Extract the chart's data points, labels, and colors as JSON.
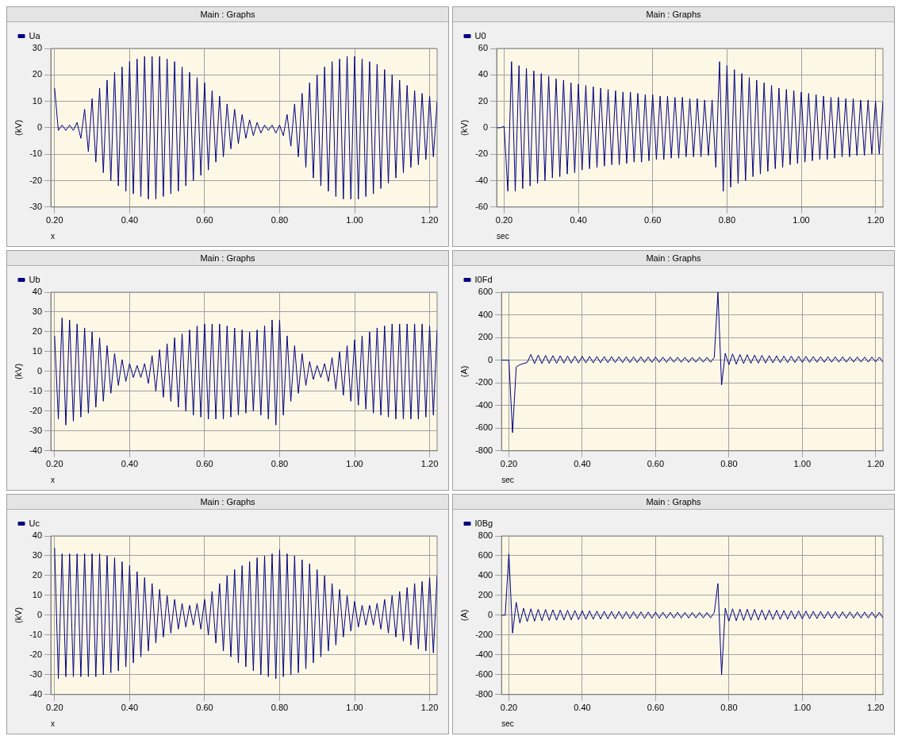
{
  "chart_data": [
    {
      "type": "line",
      "title": "Main : Graphs",
      "xlabel": "x",
      "ylabel": "(kV)",
      "legend": "top left",
      "grid": true,
      "xlim": [
        0.19,
        1.22
      ],
      "xticks": [
        {
          "value": 0.2,
          "label": "0.20"
        },
        {
          "value": 0.4,
          "label": "0.40"
        },
        {
          "value": 0.6,
          "label": "0.60"
        },
        {
          "value": 0.8,
          "label": "0.80"
        },
        {
          "value": 1.0,
          "label": "1.00"
        },
        {
          "value": 1.2,
          "label": "1.20"
        }
      ],
      "ylim": [
        -30,
        30
      ],
      "yticks": [
        -30,
        -20,
        -10,
        0,
        10,
        20,
        30
      ],
      "x": [
        0.2,
        0.21,
        0.22,
        0.23,
        0.24,
        0.25,
        0.26,
        0.27,
        0.28,
        0.29,
        0.3,
        0.31,
        0.32,
        0.33,
        0.34,
        0.35,
        0.36,
        0.37,
        0.38,
        0.39,
        0.4,
        0.41,
        0.42,
        0.43,
        0.44,
        0.45,
        0.46,
        0.47,
        0.48,
        0.49,
        0.5,
        0.51,
        0.52,
        0.53,
        0.54,
        0.55,
        0.56,
        0.57,
        0.58,
        0.59,
        0.6,
        0.61,
        0.62,
        0.63,
        0.64,
        0.65,
        0.66,
        0.67,
        0.68,
        0.69,
        0.7,
        0.71,
        0.72,
        0.73,
        0.74,
        0.75,
        0.76,
        0.77,
        0.78,
        0.79,
        0.8,
        0.81,
        0.82,
        0.83,
        0.84,
        0.85,
        0.86,
        0.87,
        0.88,
        0.89,
        0.9,
        0.91,
        0.92,
        0.93,
        0.94,
        0.95,
        0.96,
        0.97,
        0.98,
        0.99,
        1.0,
        1.01,
        1.02,
        1.03,
        1.04,
        1.05,
        1.06,
        1.07,
        1.08,
        1.09,
        1.1,
        1.11,
        1.12,
        1.13,
        1.14,
        1.15,
        1.16,
        1.17,
        1.18,
        1.19,
        1.2,
        1.21,
        1.22
      ],
      "series": [
        {
          "name": "Ua",
          "color": "#000080",
          "values": [
            15,
            -1,
            1,
            -1,
            1,
            -1,
            2,
            -4,
            7,
            -9,
            11,
            -13,
            15,
            -17,
            18,
            -20,
            21,
            -22,
            23,
            -24,
            25,
            -25,
            26,
            -26,
            27,
            -27,
            27,
            -27,
            27,
            -26,
            26,
            -25,
            25,
            -24,
            23,
            -22,
            21,
            -20,
            19,
            -18,
            17,
            -16,
            14,
            -13,
            12,
            -11,
            9,
            -8,
            7,
            -6,
            5,
            -4,
            3,
            -3,
            2,
            -2,
            1,
            -1,
            1,
            -2,
            1,
            -3,
            5,
            -7,
            9,
            -11,
            13,
            -15,
            17,
            -19,
            20,
            -22,
            23,
            -24,
            25,
            -26,
            26,
            -27,
            27,
            -27,
            27,
            -27,
            26,
            -26,
            25,
            -25,
            24,
            -23,
            22,
            -21,
            20,
            -19,
            18,
            -17,
            16,
            -15,
            14,
            -14,
            13,
            -12,
            12,
            -11,
            10
          ]
        }
      ]
    },
    {
      "type": "line",
      "title": "Main : Graphs",
      "xlabel": "sec",
      "ylabel": "(kV)",
      "legend": "top left",
      "grid": true,
      "xlim": [
        0.18,
        1.22
      ],
      "xticks": [
        {
          "value": 0.2,
          "label": "0.20"
        },
        {
          "value": 0.4,
          "label": "0.40"
        },
        {
          "value": 0.6,
          "label": "0.60"
        },
        {
          "value": 0.8,
          "label": "0.80"
        },
        {
          "value": 1.0,
          "label": "1.00"
        },
        {
          "value": 1.2,
          "label": "1.20"
        }
      ],
      "ylim": [
        -60,
        60
      ],
      "yticks": [
        -60,
        -40,
        -20,
        0,
        20,
        40,
        60
      ],
      "x": [
        0.18,
        0.19,
        0.2,
        0.21,
        0.22,
        0.23,
        0.24,
        0.25,
        0.26,
        0.27,
        0.28,
        0.29,
        0.3,
        0.31,
        0.32,
        0.33,
        0.34,
        0.35,
        0.36,
        0.37,
        0.38,
        0.39,
        0.4,
        0.41,
        0.42,
        0.43,
        0.44,
        0.45,
        0.46,
        0.47,
        0.48,
        0.49,
        0.5,
        0.51,
        0.52,
        0.53,
        0.54,
        0.55,
        0.56,
        0.57,
        0.58,
        0.59,
        0.6,
        0.61,
        0.62,
        0.63,
        0.64,
        0.65,
        0.66,
        0.67,
        0.68,
        0.69,
        0.7,
        0.71,
        0.72,
        0.73,
        0.74,
        0.75,
        0.76,
        0.77,
        0.78,
        0.79,
        0.8,
        0.81,
        0.82,
        0.83,
        0.84,
        0.85,
        0.86,
        0.87,
        0.88,
        0.89,
        0.9,
        0.91,
        0.92,
        0.93,
        0.94,
        0.95,
        0.96,
        0.97,
        0.98,
        0.99,
        1.0,
        1.01,
        1.02,
        1.03,
        1.04,
        1.05,
        1.06,
        1.07,
        1.08,
        1.09,
        1.1,
        1.11,
        1.12,
        1.13,
        1.14,
        1.15,
        1.16,
        1.17,
        1.18,
        1.19,
        1.2,
        1.21,
        1.22
      ],
      "series": [
        {
          "name": "U0",
          "color": "#000080",
          "values": [
            0,
            0,
            1,
            -48,
            50,
            -48,
            47,
            -46,
            45,
            -44,
            43,
            -42,
            41,
            -40,
            39,
            -38,
            37,
            -37,
            36,
            -35,
            34,
            -34,
            33,
            -32,
            32,
            -31,
            31,
            -30,
            30,
            -29,
            29,
            -28,
            28,
            -28,
            27,
            -27,
            27,
            -26,
            26,
            -26,
            25,
            -25,
            25,
            -24,
            24,
            -24,
            24,
            -23,
            23,
            -23,
            23,
            -22,
            22,
            -22,
            22,
            -22,
            21,
            -21,
            21,
            -30,
            50,
            -48,
            47,
            -45,
            44,
            -42,
            41,
            -40,
            38,
            -37,
            36,
            -35,
            34,
            -33,
            32,
            -31,
            30,
            -30,
            29,
            -28,
            28,
            -27,
            27,
            -26,
            26,
            -25,
            25,
            -24,
            24,
            -24,
            23,
            -23,
            23,
            -22,
            22,
            -22,
            22,
            -21,
            21,
            -21,
            21,
            -20,
            20,
            -20,
            20
          ]
        }
      ]
    },
    {
      "type": "line",
      "title": "Main : Graphs",
      "xlabel": "x",
      "ylabel": "(kV)",
      "legend": "top left",
      "grid": true,
      "xlim": [
        0.19,
        1.22
      ],
      "xticks": [
        {
          "value": 0.2,
          "label": "0.20"
        },
        {
          "value": 0.4,
          "label": "0.40"
        },
        {
          "value": 0.6,
          "label": "0.60"
        },
        {
          "value": 0.8,
          "label": "0.80"
        },
        {
          "value": 1.0,
          "label": "1.00"
        },
        {
          "value": 1.2,
          "label": "1.20"
        }
      ],
      "ylim": [
        -40,
        40
      ],
      "yticks": [
        -40,
        -30,
        -20,
        -10,
        0,
        10,
        20,
        30,
        40
      ],
      "x": [
        0.2,
        0.21,
        0.22,
        0.23,
        0.24,
        0.25,
        0.26,
        0.27,
        0.28,
        0.29,
        0.3,
        0.31,
        0.32,
        0.33,
        0.34,
        0.35,
        0.36,
        0.37,
        0.38,
        0.39,
        0.4,
        0.41,
        0.42,
        0.43,
        0.44,
        0.45,
        0.46,
        0.47,
        0.48,
        0.49,
        0.5,
        0.51,
        0.52,
        0.53,
        0.54,
        0.55,
        0.56,
        0.57,
        0.58,
        0.59,
        0.6,
        0.61,
        0.62,
        0.63,
        0.64,
        0.65,
        0.66,
        0.67,
        0.68,
        0.69,
        0.7,
        0.71,
        0.72,
        0.73,
        0.74,
        0.75,
        0.76,
        0.77,
        0.78,
        0.79,
        0.8,
        0.81,
        0.82,
        0.83,
        0.84,
        0.85,
        0.86,
        0.87,
        0.88,
        0.89,
        0.9,
        0.91,
        0.92,
        0.93,
        0.94,
        0.95,
        0.96,
        0.97,
        0.98,
        0.99,
        1.0,
        1.01,
        1.02,
        1.03,
        1.04,
        1.05,
        1.06,
        1.07,
        1.08,
        1.09,
        1.1,
        1.11,
        1.12,
        1.13,
        1.14,
        1.15,
        1.16,
        1.17,
        1.18,
        1.19,
        1.2,
        1.21,
        1.22
      ],
      "series": [
        {
          "name": "Ub",
          "color": "#000080",
          "values": [
            18,
            -24,
            27,
            -27,
            26,
            -25,
            24,
            -23,
            22,
            -21,
            20,
            -18,
            17,
            -15,
            13,
            -11,
            9,
            -7,
            6,
            -5,
            4,
            -3,
            3,
            -3,
            4,
            -6,
            8,
            -10,
            11,
            -13,
            14,
            -15,
            17,
            -18,
            19,
            -20,
            21,
            -22,
            23,
            -23,
            24,
            -24,
            24,
            -24,
            24,
            -24,
            23,
            -23,
            22,
            -22,
            21,
            -21,
            20,
            -20,
            21,
            -22,
            23,
            -24,
            26,
            -27,
            26,
            -22,
            18,
            -15,
            13,
            -11,
            9,
            -7,
            5,
            -4,
            3,
            -3,
            4,
            -5,
            7,
            -9,
            10,
            -12,
            13,
            -15,
            16,
            -17,
            18,
            -19,
            20,
            -21,
            22,
            -22,
            23,
            -23,
            24,
            -24,
            24,
            -24,
            24,
            -24,
            24,
            -24,
            24,
            -23,
            23,
            -22,
            21
          ]
        }
      ]
    },
    {
      "type": "line",
      "title": "Main : Graphs",
      "xlabel": "sec",
      "ylabel": "(A)",
      "legend": "top left",
      "grid": true,
      "xlim": [
        0.18,
        1.22
      ],
      "xticks": [
        {
          "value": 0.2,
          "label": "0.20"
        },
        {
          "value": 0.4,
          "label": "0.40"
        },
        {
          "value": 0.6,
          "label": "0.60"
        },
        {
          "value": 0.8,
          "label": "0.80"
        },
        {
          "value": 1.0,
          "label": "1.00"
        },
        {
          "value": 1.2,
          "label": "1.20"
        }
      ],
      "ylim": [
        -800,
        600
      ],
      "yticks": [
        -800,
        -600,
        -400,
        -200,
        0,
        200,
        400,
        600
      ],
      "x": [
        0.18,
        0.19,
        0.2,
        0.21,
        0.22,
        0.23,
        0.24,
        0.25,
        0.26,
        0.27,
        0.28,
        0.29,
        0.3,
        0.31,
        0.32,
        0.33,
        0.34,
        0.35,
        0.36,
        0.37,
        0.38,
        0.39,
        0.4,
        0.41,
        0.42,
        0.43,
        0.44,
        0.45,
        0.46,
        0.47,
        0.48,
        0.49,
        0.5,
        0.51,
        0.52,
        0.53,
        0.54,
        0.55,
        0.56,
        0.57,
        0.58,
        0.59,
        0.6,
        0.61,
        0.62,
        0.63,
        0.64,
        0.65,
        0.66,
        0.67,
        0.68,
        0.69,
        0.7,
        0.71,
        0.72,
        0.73,
        0.74,
        0.75,
        0.76,
        0.77,
        0.78,
        0.79,
        0.8,
        0.81,
        0.82,
        0.83,
        0.84,
        0.85,
        0.86,
        0.87,
        0.88,
        0.89,
        0.9,
        0.91,
        0.92,
        0.93,
        0.94,
        0.95,
        0.96,
        0.97,
        0.98,
        0.99,
        1.0,
        1.01,
        1.02,
        1.03,
        1.04,
        1.05,
        1.06,
        1.07,
        1.08,
        1.09,
        1.1,
        1.11,
        1.12,
        1.13,
        1.14,
        1.15,
        1.16,
        1.17,
        1.18,
        1.19,
        1.2,
        1.21,
        1.22
      ],
      "series": [
        {
          "name": "I0Fd",
          "color": "#000080",
          "values": [
            0,
            0,
            0,
            -640,
            -60,
            -40,
            -30,
            -20,
            50,
            -30,
            45,
            -30,
            42,
            -28,
            40,
            -28,
            38,
            -26,
            36,
            -26,
            35,
            -25,
            34,
            -24,
            33,
            -24,
            32,
            -23,
            32,
            -23,
            31,
            -22,
            30,
            -22,
            30,
            -22,
            29,
            -21,
            29,
            -21,
            28,
            -20,
            28,
            -20,
            27,
            -20,
            27,
            -19,
            26,
            -19,
            26,
            -19,
            25,
            -18,
            25,
            -18,
            25,
            -18,
            24,
            600,
            -220,
            60,
            -40,
            55,
            -35,
            50,
            -30,
            48,
            -28,
            45,
            -26,
            42,
            -25,
            40,
            -24,
            38,
            -23,
            36,
            -22,
            35,
            -21,
            34,
            -20,
            33,
            -20,
            32,
            -19,
            31,
            -19,
            30,
            -18,
            30,
            -18,
            29,
            -18,
            28,
            -17,
            28,
            -17,
            27,
            -17,
            27,
            -16,
            26,
            -16
          ]
        }
      ]
    },
    {
      "type": "line",
      "title": "Main : Graphs",
      "xlabel": "x",
      "ylabel": "(kV)",
      "legend": "top left",
      "grid": true,
      "xlim": [
        0.19,
        1.22
      ],
      "xticks": [
        {
          "value": 0.2,
          "label": "0.20"
        },
        {
          "value": 0.4,
          "label": "0.40"
        },
        {
          "value": 0.6,
          "label": "0.60"
        },
        {
          "value": 0.8,
          "label": "0.80"
        },
        {
          "value": 1.0,
          "label": "1.00"
        },
        {
          "value": 1.2,
          "label": "1.20"
        }
      ],
      "ylim": [
        -40,
        40
      ],
      "yticks": [
        -40,
        -30,
        -20,
        -10,
        0,
        10,
        20,
        30,
        40
      ],
      "x": [
        0.2,
        0.21,
        0.22,
        0.23,
        0.24,
        0.25,
        0.26,
        0.27,
        0.28,
        0.29,
        0.3,
        0.31,
        0.32,
        0.33,
        0.34,
        0.35,
        0.36,
        0.37,
        0.38,
        0.39,
        0.4,
        0.41,
        0.42,
        0.43,
        0.44,
        0.45,
        0.46,
        0.47,
        0.48,
        0.49,
        0.5,
        0.51,
        0.52,
        0.53,
        0.54,
        0.55,
        0.56,
        0.57,
        0.58,
        0.59,
        0.6,
        0.61,
        0.62,
        0.63,
        0.64,
        0.65,
        0.66,
        0.67,
        0.68,
        0.69,
        0.7,
        0.71,
        0.72,
        0.73,
        0.74,
        0.75,
        0.76,
        0.77,
        0.78,
        0.79,
        0.8,
        0.81,
        0.82,
        0.83,
        0.84,
        0.85,
        0.86,
        0.87,
        0.88,
        0.89,
        0.9,
        0.91,
        0.92,
        0.93,
        0.94,
        0.95,
        0.96,
        0.97,
        0.98,
        0.99,
        1.0,
        1.01,
        1.02,
        1.03,
        1.04,
        1.05,
        1.06,
        1.07,
        1.08,
        1.09,
        1.1,
        1.11,
        1.12,
        1.13,
        1.14,
        1.15,
        1.16,
        1.17,
        1.18,
        1.19,
        1.2,
        1.21,
        1.22
      ],
      "series": [
        {
          "name": "Uc",
          "color": "#000080",
          "values": [
            34,
            -32,
            31,
            -31,
            31,
            -31,
            31,
            -31,
            31,
            -31,
            31,
            -31,
            31,
            -30,
            30,
            -29,
            29,
            -28,
            27,
            -26,
            25,
            -24,
            22,
            -21,
            19,
            -18,
            16,
            -14,
            13,
            -11,
            10,
            -9,
            8,
            -7,
            6,
            -6,
            5,
            -5,
            6,
            -7,
            8,
            -10,
            12,
            -14,
            16,
            -18,
            20,
            -21,
            23,
            -24,
            25,
            -26,
            27,
            -28,
            29,
            -30,
            30,
            -31,
            31,
            -32,
            33,
            -31,
            31,
            -30,
            30,
            -29,
            28,
            -27,
            26,
            -24,
            23,
            -21,
            20,
            -18,
            16,
            -15,
            13,
            -11,
            10,
            -8,
            7,
            -6,
            5,
            -5,
            5,
            -5,
            6,
            -7,
            8,
            -9,
            10,
            -11,
            12,
            -13,
            14,
            -15,
            16,
            -17,
            17,
            -18,
            19,
            -19,
            20
          ]
        }
      ]
    },
    {
      "type": "line",
      "title": "Main : Graphs",
      "xlabel": "sec",
      "ylabel": "(A)",
      "legend": "top left",
      "grid": true,
      "xlim": [
        0.18,
        1.22
      ],
      "xticks": [
        {
          "value": 0.2,
          "label": "0.20"
        },
        {
          "value": 0.4,
          "label": "0.40"
        },
        {
          "value": 0.6,
          "label": "0.60"
        },
        {
          "value": 0.8,
          "label": "0.80"
        },
        {
          "value": 1.0,
          "label": "1.00"
        },
        {
          "value": 1.2,
          "label": "1.20"
        }
      ],
      "ylim": [
        -800,
        800
      ],
      "yticks": [
        -800,
        -600,
        -400,
        -200,
        0,
        200,
        400,
        600,
        800
      ],
      "x": [
        0.18,
        0.19,
        0.2,
        0.21,
        0.22,
        0.23,
        0.24,
        0.25,
        0.26,
        0.27,
        0.28,
        0.29,
        0.3,
        0.31,
        0.32,
        0.33,
        0.34,
        0.35,
        0.36,
        0.37,
        0.38,
        0.39,
        0.4,
        0.41,
        0.42,
        0.43,
        0.44,
        0.45,
        0.46,
        0.47,
        0.48,
        0.49,
        0.5,
        0.51,
        0.52,
        0.53,
        0.54,
        0.55,
        0.56,
        0.57,
        0.58,
        0.59,
        0.6,
        0.61,
        0.62,
        0.63,
        0.64,
        0.65,
        0.66,
        0.67,
        0.68,
        0.69,
        0.7,
        0.71,
        0.72,
        0.73,
        0.74,
        0.75,
        0.76,
        0.77,
        0.78,
        0.79,
        0.8,
        0.81,
        0.82,
        0.83,
        0.84,
        0.85,
        0.86,
        0.87,
        0.88,
        0.89,
        0.9,
        0.91,
        0.92,
        0.93,
        0.94,
        0.95,
        0.96,
        0.97,
        0.98,
        0.99,
        1.0,
        1.01,
        1.02,
        1.03,
        1.04,
        1.05,
        1.06,
        1.07,
        1.08,
        1.09,
        1.1,
        1.11,
        1.12,
        1.13,
        1.14,
        1.15,
        1.16,
        1.17,
        1.18,
        1.19,
        1.2,
        1.21,
        1.22
      ],
      "series": [
        {
          "name": "I0Bg",
          "color": "#000080",
          "values": [
            0,
            0,
            620,
            -180,
            130,
            -80,
            70,
            -65,
            65,
            -60,
            60,
            -55,
            58,
            -52,
            55,
            -50,
            52,
            -48,
            50,
            -46,
            48,
            -44,
            46,
            -42,
            44,
            -40,
            42,
            -38,
            40,
            -37,
            38,
            -36,
            37,
            -35,
            36,
            -34,
            35,
            -33,
            34,
            -32,
            33,
            -31,
            32,
            -30,
            31,
            -30,
            30,
            -29,
            30,
            -28,
            29,
            -28,
            28,
            -27,
            28,
            -27,
            27,
            -26,
            27,
            320,
            -600,
            70,
            -60,
            65,
            -55,
            62,
            -52,
            60,
            -50,
            58,
            -48,
            55,
            -46,
            52,
            -44,
            50,
            -42,
            48,
            -40,
            46,
            -38,
            44,
            -36,
            42,
            -35,
            40,
            -34,
            38,
            -33,
            37,
            -32,
            36,
            -31,
            35,
            -30,
            34,
            -30,
            33,
            -29,
            32,
            -28,
            31,
            -28,
            30,
            -27
          ]
        }
      ]
    }
  ]
}
